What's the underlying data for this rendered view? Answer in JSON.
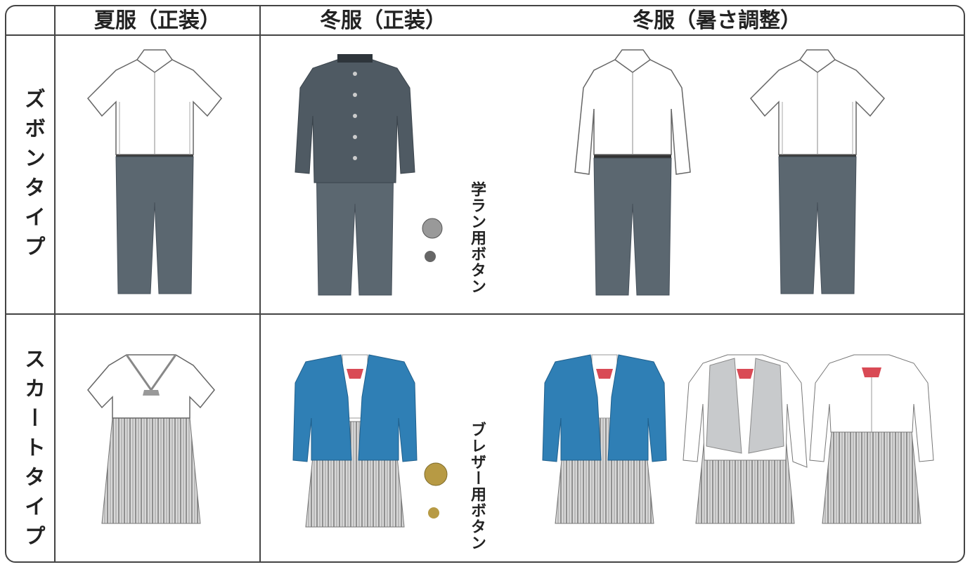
{
  "table": {
    "columns": [
      "夏服（正装）",
      "冬服（正装）",
      "冬服（暑さ調整）"
    ],
    "rows": [
      "ズボンタイプ",
      "スカートタイプ"
    ],
    "button_labels": [
      "学ラン用ボタン",
      "ブレザー用ボタン"
    ]
  }
}
